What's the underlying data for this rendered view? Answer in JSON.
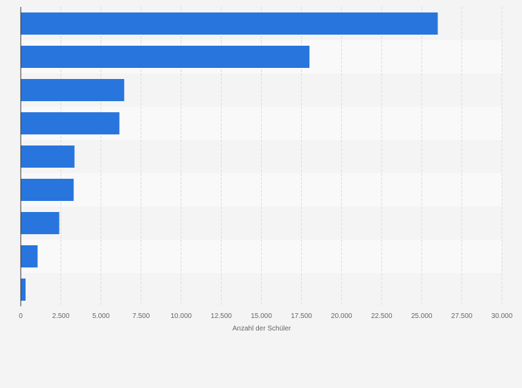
{
  "chart_data": {
    "type": "bar",
    "orientation": "horizontal",
    "categories": [
      "",
      "",
      "",
      "",
      "",
      "",
      "",
      "",
      ""
    ],
    "values": [
      26000,
      18000,
      6450,
      6150,
      3350,
      3300,
      2400,
      1050,
      300
    ],
    "xlabel": "Anzahl der Schüler",
    "ylabel": "",
    "xlim": [
      0,
      30000
    ],
    "x_ticks": [
      0,
      2500,
      5000,
      7500,
      10000,
      12500,
      15000,
      17500,
      20000,
      22500,
      25000,
      27500,
      30000
    ],
    "x_tick_labels": [
      "0",
      "2.500",
      "5.000",
      "7.500",
      "10.000",
      "12.500",
      "15.000",
      "17.500",
      "20.000",
      "22.500",
      "25.000",
      "27.500",
      "30.000"
    ],
    "grid": "vertical",
    "legend": "none",
    "colors": {
      "bar": "#2876dd",
      "band_odd": "#f4f4f4",
      "band_even": "#f9f9f9",
      "grid": "#dcdcdc",
      "axis": "#333333",
      "text": "#666666"
    }
  }
}
